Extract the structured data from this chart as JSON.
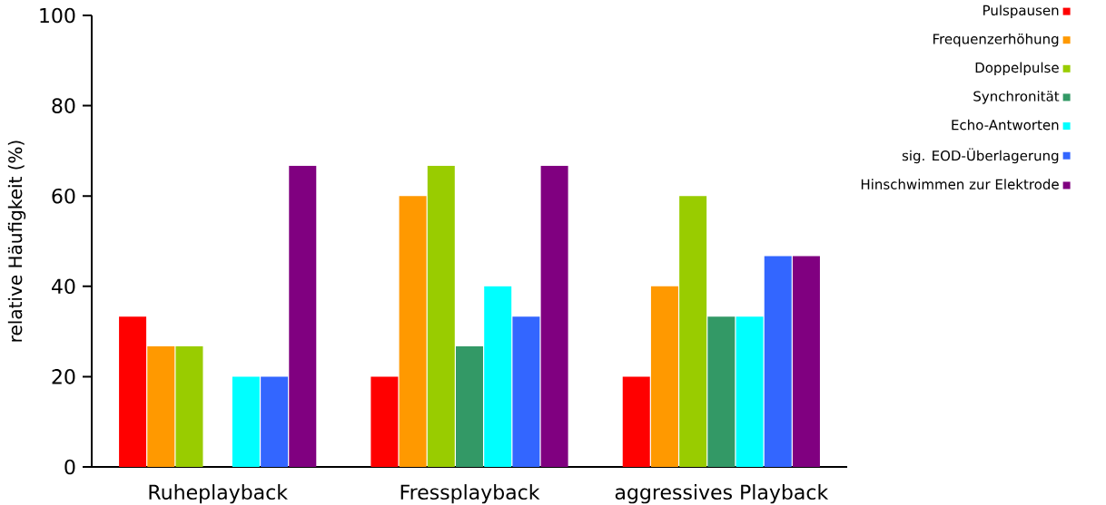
{
  "chart_data": {
    "type": "bar",
    "ylabel": "relative Häufigkeit (%)",
    "categories": [
      "Ruheplayback",
      "Fressplayback",
      "aggressives Playback"
    ],
    "series": [
      {
        "name": "Pulspausen",
        "color": "#ff0000",
        "values": [
          33.3,
          20,
          20
        ]
      },
      {
        "name": "Frequenzerhöhung",
        "color": "#ff9900",
        "values": [
          26.7,
          60,
          40
        ]
      },
      {
        "name": "Doppelpulse",
        "color": "#99cc00",
        "values": [
          26.7,
          66.7,
          60
        ]
      },
      {
        "name": "Synchronität",
        "color": "#339966",
        "values": [
          0,
          26.7,
          33.3
        ]
      },
      {
        "name": "Echo-Antworten",
        "color": "#00ffff",
        "values": [
          20,
          40,
          33.3
        ]
      },
      {
        "name": "sig. EOD-Überlagerung",
        "color": "#3366ff",
        "values": [
          20,
          33.3,
          46.7
        ]
      },
      {
        "name": "Hinschwimmen zur Elektrode",
        "color": "#800080",
        "values": [
          66.7,
          66.7,
          46.7
        ]
      }
    ],
    "ylim": [
      0,
      100
    ],
    "yticks": [
      0,
      20,
      40,
      60,
      80,
      100
    ],
    "legend": "top right",
    "grid": false
  }
}
